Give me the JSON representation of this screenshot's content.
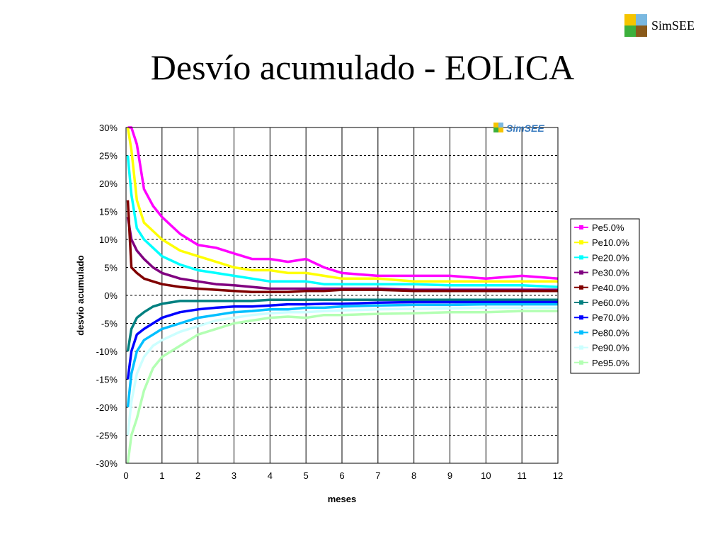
{
  "header": {
    "title": "Desvío acumulado - EOLICA",
    "logo_text": "SimSEE",
    "logo_colors": [
      "#f5c400",
      "#7ab8e0",
      "#3cb03c",
      "#8a5a1a"
    ]
  },
  "chart_data": {
    "type": "line",
    "xlabel": "meses",
    "ylabel": "desvio acumulado",
    "xlim": [
      0,
      12
    ],
    "ylim": [
      -0.3,
      0.3
    ],
    "xticks": [
      "0",
      "1",
      "2",
      "3",
      "4",
      "5",
      "6",
      "7",
      "8",
      "9",
      "10",
      "11",
      "12"
    ],
    "yticks": [
      "30%",
      "25%",
      "20%",
      "15%",
      "10%",
      "5%",
      "0%",
      "-5%",
      "-10%",
      "-15%",
      "-20%",
      "-25%",
      "-30%"
    ],
    "grid": true,
    "legend_position": "right",
    "watermark": "SimSEE",
    "x": [
      0.05,
      0.15,
      0.3,
      0.5,
      0.75,
      1,
      1.5,
      2,
      2.5,
      3,
      3.5,
      4,
      4.5,
      5,
      5.5,
      6,
      7,
      8,
      9,
      10,
      11,
      12
    ],
    "series": [
      {
        "name": "Pe5.0%",
        "color": "#ff00ff",
        "values": [
          0.3,
          0.3,
          0.27,
          0.19,
          0.16,
          0.14,
          0.11,
          0.09,
          0.085,
          0.075,
          0.065,
          0.065,
          0.06,
          0.065,
          0.05,
          0.04,
          0.035,
          0.035,
          0.035,
          0.03,
          0.035,
          0.03
        ]
      },
      {
        "name": "Pe10.0%",
        "color": "#ffff00",
        "values": [
          0.3,
          0.26,
          0.17,
          0.13,
          0.115,
          0.1,
          0.08,
          0.07,
          0.06,
          0.05,
          0.045,
          0.045,
          0.04,
          0.04,
          0.035,
          0.03,
          0.03,
          0.025,
          0.025,
          0.025,
          0.025,
          0.025
        ]
      },
      {
        "name": "Pe20.0%",
        "color": "#00ffff",
        "values": [
          0.25,
          0.18,
          0.12,
          0.1,
          0.085,
          0.07,
          0.055,
          0.045,
          0.04,
          0.035,
          0.03,
          0.025,
          0.025,
          0.025,
          0.02,
          0.02,
          0.02,
          0.02,
          0.018,
          0.018,
          0.018,
          0.015
        ]
      },
      {
        "name": "Pe30.0%",
        "color": "#800080",
        "values": [
          0.14,
          0.1,
          0.08,
          0.065,
          0.05,
          0.04,
          0.03,
          0.025,
          0.02,
          0.018,
          0.015,
          0.012,
          0.012,
          0.012,
          0.012,
          0.012,
          0.012,
          0.01,
          0.01,
          0.01,
          0.01,
          0.01
        ]
      },
      {
        "name": "Pe40.0%",
        "color": "#800000",
        "values": [
          0.17,
          0.05,
          0.04,
          0.03,
          0.025,
          0.02,
          0.015,
          0.012,
          0.01,
          0.008,
          0.006,
          0.006,
          0.006,
          0.008,
          0.008,
          0.01,
          0.01,
          0.008,
          0.008,
          0.008,
          0.008,
          0.008
        ]
      },
      {
        "name": "Pe60.0%",
        "color": "#008080",
        "values": [
          -0.1,
          -0.06,
          -0.04,
          -0.03,
          -0.02,
          -0.015,
          -0.01,
          -0.01,
          -0.01,
          -0.01,
          -0.01,
          -0.008,
          -0.008,
          -0.008,
          -0.008,
          -0.008,
          -0.008,
          -0.008,
          -0.008,
          -0.008,
          -0.008,
          -0.008
        ]
      },
      {
        "name": "Pe70.0%",
        "color": "#0000ff",
        "values": [
          -0.15,
          -0.1,
          -0.07,
          -0.06,
          -0.05,
          -0.04,
          -0.03,
          -0.025,
          -0.022,
          -0.02,
          -0.02,
          -0.018,
          -0.016,
          -0.016,
          -0.015,
          -0.015,
          -0.013,
          -0.012,
          -0.012,
          -0.012,
          -0.012,
          -0.012
        ]
      },
      {
        "name": "Pe80.0%",
        "color": "#00bfff",
        "values": [
          -0.2,
          -0.14,
          -0.1,
          -0.08,
          -0.07,
          -0.06,
          -0.05,
          -0.04,
          -0.035,
          -0.03,
          -0.028,
          -0.025,
          -0.025,
          -0.022,
          -0.022,
          -0.02,
          -0.018,
          -0.017,
          -0.017,
          -0.016,
          -0.016,
          -0.016
        ]
      },
      {
        "name": "Pe90.0%",
        "color": "#ccffff",
        "values": [
          -0.25,
          -0.19,
          -0.14,
          -0.11,
          -0.09,
          -0.08,
          -0.065,
          -0.055,
          -0.045,
          -0.04,
          -0.035,
          -0.032,
          -0.03,
          -0.03,
          -0.028,
          -0.027,
          -0.025,
          -0.024,
          -0.023,
          -0.022,
          -0.022,
          -0.022
        ]
      },
      {
        "name": "Pe95.0%",
        "color": "#b3ffb3",
        "values": [
          -0.3,
          -0.25,
          -0.22,
          -0.17,
          -0.13,
          -0.11,
          -0.09,
          -0.07,
          -0.06,
          -0.05,
          -0.045,
          -0.04,
          -0.038,
          -0.04,
          -0.035,
          -0.035,
          -0.033,
          -0.032,
          -0.03,
          -0.03,
          -0.028,
          -0.028
        ]
      }
    ]
  }
}
